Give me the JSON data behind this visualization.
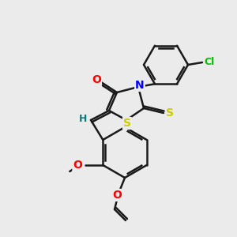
{
  "bg_color": "#ebebeb",
  "bond_color": "#1a1a1a",
  "atom_colors": {
    "O": "#ff0000",
    "N": "#0000ff",
    "S": "#cccc00",
    "Cl": "#00bb00",
    "H": "#008080",
    "C": "#1a1a1a"
  },
  "figsize": [
    3.0,
    3.0
  ],
  "dpi": 100
}
